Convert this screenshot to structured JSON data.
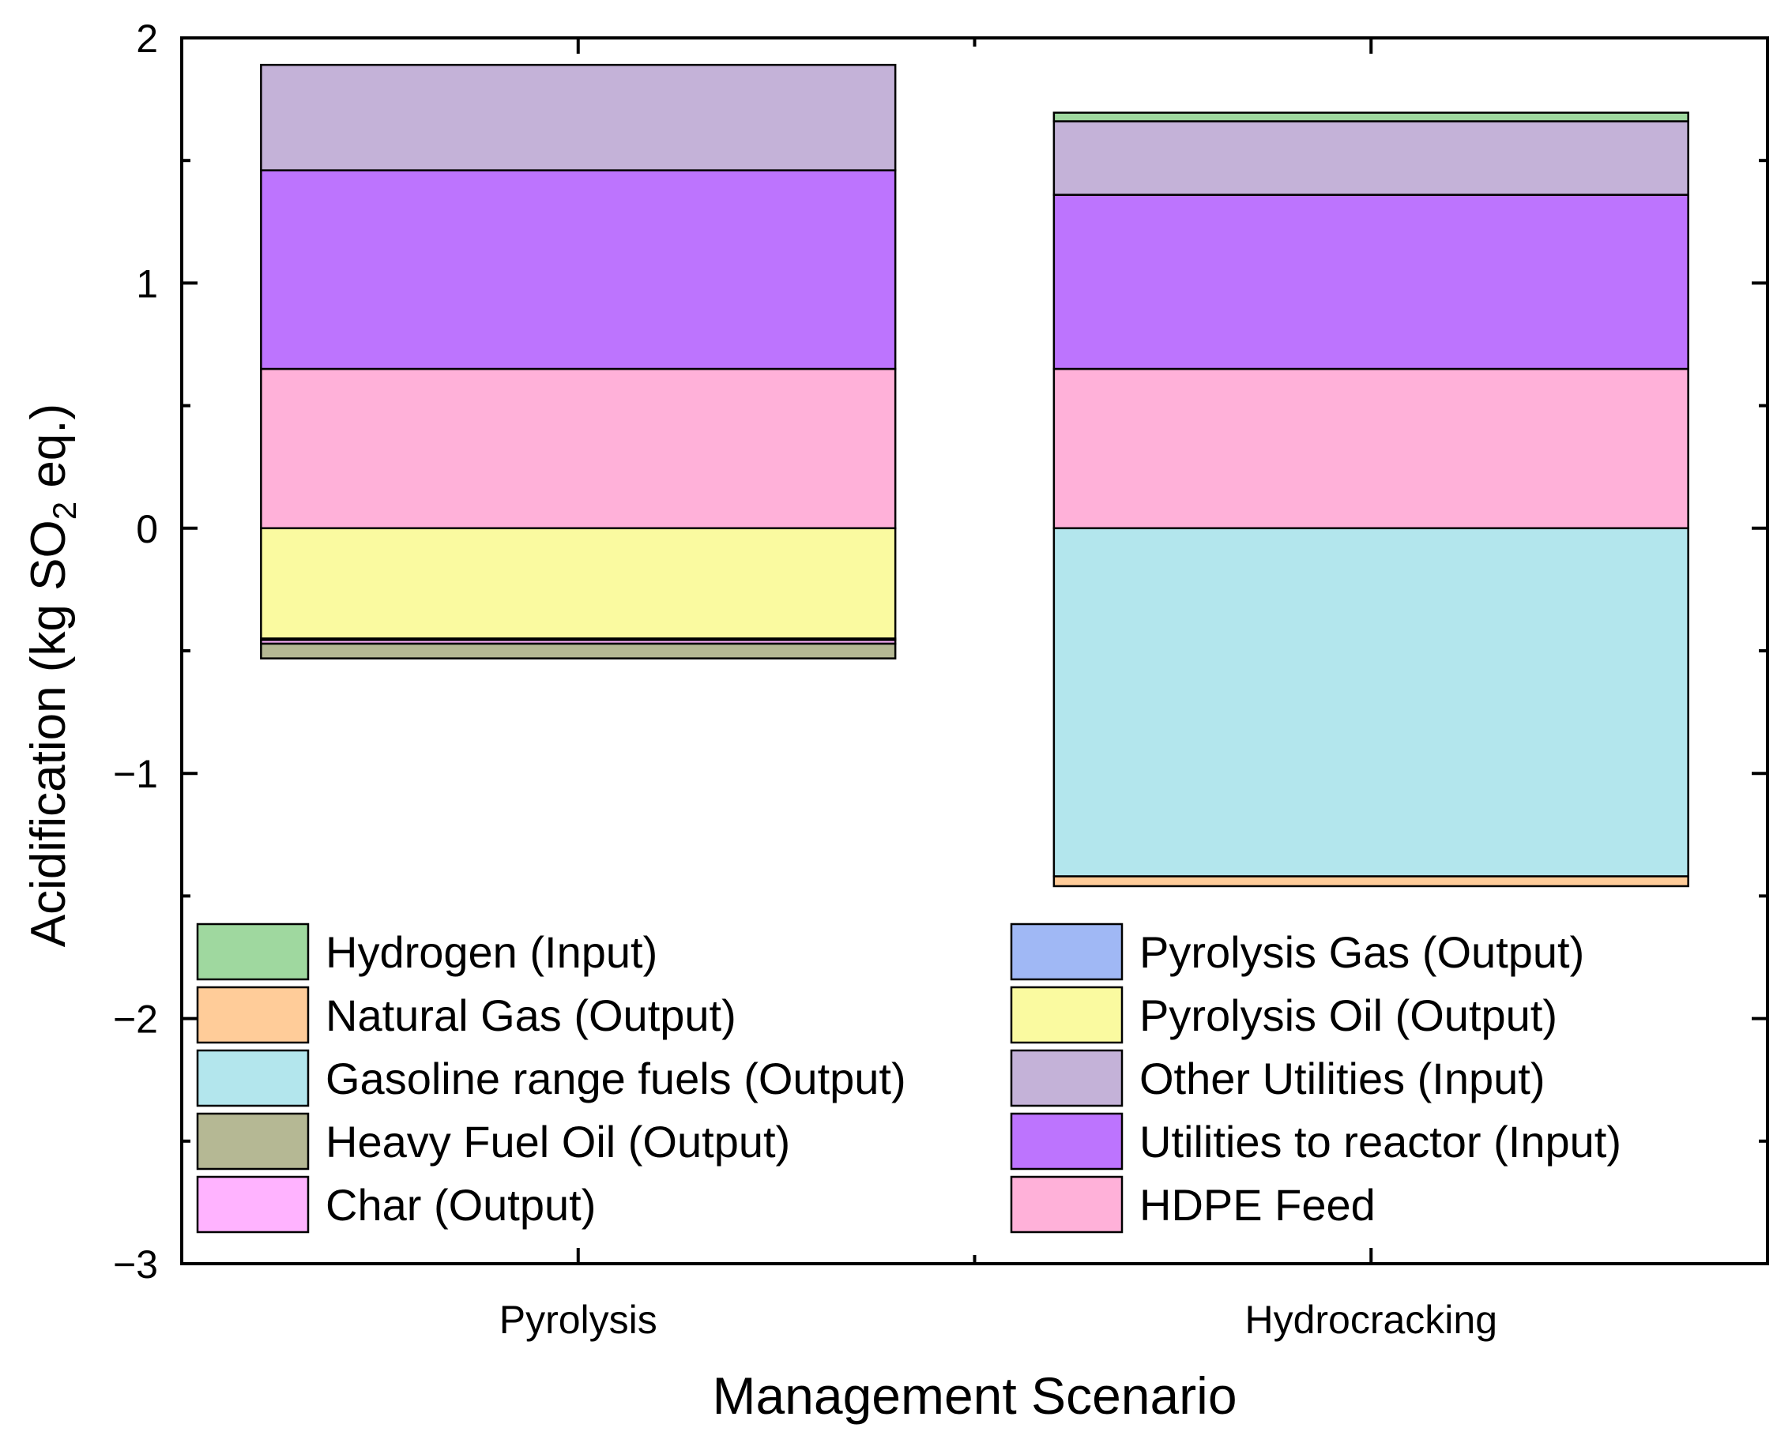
{
  "chart_data": {
    "type": "bar",
    "stacked": true,
    "categories": [
      "Pyrolysis",
      "Hydrocracking"
    ],
    "xlabel": "Management Scenario",
    "ylabel": {
      "prefix": "Acidification (kg SO",
      "subscript": "2",
      "suffix": " eq.)"
    },
    "ylim": [
      -3,
      2
    ],
    "yticks": [
      -3,
      -2,
      -1,
      0,
      1,
      2
    ],
    "ytick_labels": [
      "−3",
      "−2",
      "−1",
      "0",
      "1",
      "2"
    ],
    "grid": false,
    "legend_position": "bottom",
    "series": [
      {
        "name": "Hydrogen (Input)",
        "color": "#9fd89f",
        "values": [
          0,
          0.035
        ]
      },
      {
        "name": "Natural Gas (Output)",
        "color": "#ffcc99",
        "values": [
          0,
          -0.04
        ]
      },
      {
        "name": "Gasoline range fuels (Output)",
        "color": "#b3e6ed",
        "values": [
          0,
          -1.42
        ]
      },
      {
        "name": "Heavy Fuel Oil (Output)",
        "color": "#b5b894",
        "values": [
          -0.06,
          0
        ]
      },
      {
        "name": "Char (Output)",
        "color": "#ffb3ff",
        "values": [
          -0.015,
          0
        ]
      },
      {
        "name": "Pyrolysis Gas (Output)",
        "color": "#a0b8f5",
        "values": [
          -0.006,
          0
        ]
      },
      {
        "name": "Pyrolysis Oil (Output)",
        "color": "#fafaa0",
        "values": [
          -0.45,
          0
        ]
      },
      {
        "name": "Other Utilities (Input)",
        "color": "#c4b2d8",
        "values": [
          0.43,
          0.3
        ]
      },
      {
        "name": "Utilities to reactor (Input)",
        "color": "#bd74fe",
        "values": [
          0.81,
          0.71
        ]
      },
      {
        "name": "HDPE Feed",
        "color": "#ffb1d9",
        "values": [
          0.65,
          0.65
        ]
      }
    ],
    "stack_order_positive": [
      "HDPE Feed",
      "Utilities to reactor (Input)",
      "Other Utilities (Input)",
      "Hydrogen (Input)"
    ],
    "stack_order_negative": [
      "Pyrolysis Oil (Output)",
      "Pyrolysis Gas (Output)",
      "Char (Output)",
      "Heavy Fuel Oil (Output)",
      "Gasoline range fuels (Output)",
      "Natural Gas (Output)"
    ],
    "legend_columns": [
      [
        "Hydrogen (Input)",
        "Natural Gas (Output)",
        "Gasoline range fuels (Output)",
        "Heavy Fuel Oil (Output)",
        "Char (Output)"
      ],
      [
        "Pyrolysis Gas (Output)",
        "Pyrolysis Oil (Output)",
        "Other Utilities (Input)",
        "Utilities to reactor (Input)",
        "HDPE Feed"
      ]
    ]
  }
}
